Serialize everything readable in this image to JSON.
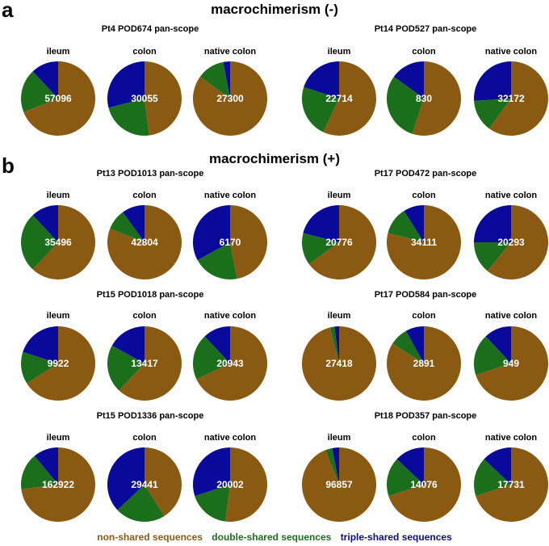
{
  "panel_a": {
    "letter": "a",
    "title": "macrochimerism (-)"
  },
  "panel_b": {
    "letter": "b",
    "title": "macrochimerism (+)"
  },
  "legend": {
    "non_shared": "non-shared sequences",
    "double_shared": "double-shared sequences",
    "triple_shared": "triple-shared sequences"
  },
  "colors": {
    "non_shared": "#8B5A12",
    "double_shared": "#1B6E1B",
    "triple_shared": "#0A0A9A"
  },
  "chart_data": [
    {
      "type": "pie",
      "title": "Pt4 POD674 pan-scope",
      "pies": [
        {
          "label": "ileum",
          "count": "57096",
          "values": [
            0.69,
            0.19,
            0.12
          ]
        },
        {
          "label": "colon",
          "count": "30055",
          "values": [
            0.48,
            0.23,
            0.29
          ]
        },
        {
          "label": "native colon",
          "count": "27300",
          "values": [
            0.85,
            0.12,
            0.03
          ]
        }
      ]
    },
    {
      "type": "pie",
      "title": "Pt14 POD527 pan-scope",
      "pies": [
        {
          "label": "ileum",
          "count": "22714",
          "values": [
            0.57,
            0.23,
            0.2
          ]
        },
        {
          "label": "colon",
          "count": "830",
          "values": [
            0.55,
            0.3,
            0.15
          ]
        },
        {
          "label": "native colon",
          "count": "32172",
          "values": [
            0.6,
            0.14,
            0.26
          ]
        }
      ]
    },
    {
      "type": "pie",
      "title": "Pt13 POD1013 pan-scope",
      "pies": [
        {
          "label": "ileum",
          "count": "35496",
          "values": [
            0.62,
            0.26,
            0.12
          ]
        },
        {
          "label": "colon",
          "count": "42804",
          "values": [
            0.81,
            0.09,
            0.1
          ]
        },
        {
          "label": "native colon",
          "count": "6170",
          "values": [
            0.47,
            0.2,
            0.33
          ]
        }
      ]
    },
    {
      "type": "pie",
      "title": "Pt17 POD472 pan-scope",
      "pies": [
        {
          "label": "ileum",
          "count": "20776",
          "values": [
            0.65,
            0.14,
            0.21
          ]
        },
        {
          "label": "colon",
          "count": "34111",
          "values": [
            0.79,
            0.12,
            0.09
          ]
        },
        {
          "label": "native colon",
          "count": "20293",
          "values": [
            0.61,
            0.14,
            0.25
          ]
        }
      ]
    },
    {
      "type": "pie",
      "title": "Pt15 POD1018 pan-scope",
      "pies": [
        {
          "label": "ileum",
          "count": "9922",
          "values": [
            0.66,
            0.14,
            0.2
          ]
        },
        {
          "label": "colon",
          "count": "13417",
          "values": [
            0.62,
            0.21,
            0.17
          ]
        },
        {
          "label": "native colon",
          "count": "20943",
          "values": [
            0.68,
            0.2,
            0.12
          ]
        }
      ]
    },
    {
      "type": "pie",
      "title": "Pt17 POD584 pan-scope",
      "pies": [
        {
          "label": "ileum",
          "count": "27418",
          "values": [
            0.96,
            0.02,
            0.02
          ]
        },
        {
          "label": "colon",
          "count": "2891",
          "values": [
            0.84,
            0.08,
            0.08
          ]
        },
        {
          "label": "native colon",
          "count": "949",
          "values": [
            0.7,
            0.18,
            0.12
          ]
        }
      ]
    },
    {
      "type": "pie",
      "title": "Pt15 POD1336 pan-scope",
      "pies": [
        {
          "label": "ileum",
          "count": "162922",
          "values": [
            0.73,
            0.16,
            0.11
          ]
        },
        {
          "label": "colon",
          "count": "29441",
          "values": [
            0.41,
            0.22,
            0.37
          ]
        },
        {
          "label": "native colon",
          "count": "20002",
          "values": [
            0.52,
            0.18,
            0.3
          ]
        }
      ]
    },
    {
      "type": "pie",
      "title": "Pt18 POD357 pan-scope",
      "pies": [
        {
          "label": "ileum",
          "count": "96857",
          "values": [
            0.94,
            0.03,
            0.03
          ]
        },
        {
          "label": "colon",
          "count": "14076",
          "values": [
            0.7,
            0.17,
            0.13
          ]
        },
        {
          "label": "native colon",
          "count": "17731",
          "values": [
            0.7,
            0.17,
            0.13
          ]
        }
      ]
    }
  ]
}
